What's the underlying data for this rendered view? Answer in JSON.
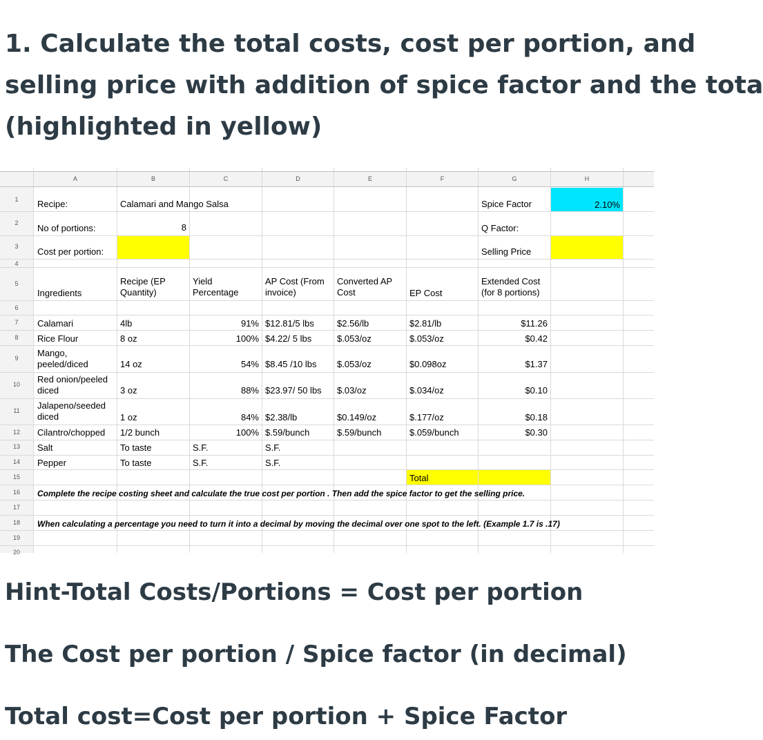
{
  "title": {
    "line1": "1. Calculate the total costs, cost per portion,  and",
    "line2": "selling price with addition of spice factor and the tota",
    "line3": "(highlighted in yellow)"
  },
  "sheet": {
    "columns": [
      "A",
      "B",
      "C",
      "D",
      "E",
      "F",
      "G",
      "H"
    ],
    "rows": [
      "1",
      "2",
      "3",
      "4",
      "5",
      "6",
      "7",
      "8",
      "9",
      "10",
      "11",
      "12",
      "13",
      "14",
      "15",
      "16",
      "17",
      "18",
      "19",
      "20"
    ],
    "colors": {
      "highlight": "#ffff00",
      "spice_fill": "#00e5ff"
    },
    "recipe_label": "Recipe:",
    "recipe_name": "Calamari and Mango Salsa",
    "portions_label": "No of portions:",
    "portions_value": "8",
    "cost_per_portion_label": "Cost per portion:",
    "spice_factor_label": "Spice Factor",
    "spice_factor_value": "2.10%",
    "q_factor_label": "Q Factor:",
    "selling_price_label": "Selling Price",
    "headers": {
      "ingredients": "Ingredients",
      "recipe_ep_1": "Recipe (EP",
      "recipe_ep_2": "Quantity)",
      "yield_1": "Yield",
      "yield_2": "Percentage",
      "ap_cost_1": "AP Cost (From",
      "ap_cost_2": "invoice)",
      "converted_1": "Converted AP",
      "converted_2": "Cost",
      "ep_cost": "EP Cost",
      "extended_1": "Extended Cost",
      "extended_2": "(for 8 portions)"
    },
    "items": [
      {
        "ing1": "Calamari",
        "ing2": "",
        "qty": "4lb",
        "yield": "91%",
        "ap": "$12.81/5 lbs",
        "conv": "$2.56/lb",
        "ep": "$2.81/lb",
        "ext": "$11.26"
      },
      {
        "ing1": "Rice Flour",
        "ing2": "",
        "qty": "8 oz",
        "yield": "100%",
        "ap": "$4.22/ 5 lbs",
        "conv": "$.053/oz",
        "ep": "$.053/oz",
        "ext": "$0.42"
      },
      {
        "ing1": "Mango,",
        "ing2": "peeled/diced",
        "qty": "14 oz",
        "yield": "54%",
        "ap": "$8.45 /10 lbs",
        "conv": "$.053/oz",
        "ep": "$0.098oz",
        "ext": "$1.37"
      },
      {
        "ing1": "Red onion/peeled",
        "ing2": "diced",
        "qty": "3 oz",
        "yield": "88%",
        "ap": "$23.97/ 50 lbs",
        "conv": "$.03/oz",
        "ep": "$.034/oz",
        "ext": "$0.10"
      },
      {
        "ing1": "Jalapeno/seeded",
        "ing2": "diced",
        "qty": "1 oz",
        "yield": "84%",
        "ap": "$2.38/lb",
        "conv": "$0.149/oz",
        "ep": "$.177/oz",
        "ext": "$0.18"
      },
      {
        "ing1": "Cilantro/chopped",
        "ing2": "",
        "qty": "1/2 bunch",
        "yield": "100%",
        "ap": "$.59/bunch",
        "conv": "$.59/bunch",
        "ep": "$.059/bunch",
        "ext": "$0.30"
      }
    ],
    "salt": {
      "ing": "Salt",
      "qty": "To taste",
      "yield": "S.F.",
      "ap": "S.F."
    },
    "pepper": {
      "ing": "Pepper",
      "qty": "To taste",
      "yield": "S.F.",
      "ap": "S.F."
    },
    "total_label": "Total",
    "note1": "Complete the recipe costing sheet and calculate the true cost per portion . Then add the spice factor to get the selling price.",
    "note2": "When calculating a percentage you need to turn it into a decimal by moving the decimal over one spot to the left. (Example 1.7 is .17)"
  },
  "hints": {
    "line1": "Hint-Total Costs/Portions = Cost per portion",
    "line2": "The Cost per portion / Spice factor (in decimal)",
    "line3": "Total cost=Cost per portion + Spice Factor"
  }
}
